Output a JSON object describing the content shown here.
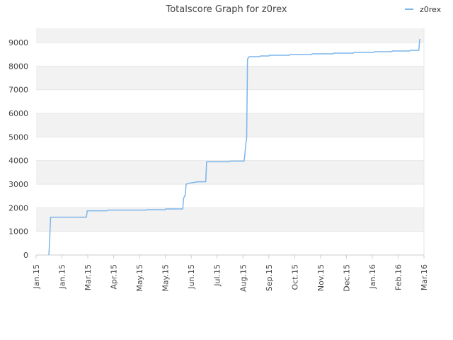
{
  "chart_data": {
    "type": "line",
    "title": "Totalscore Graph for z0rex",
    "xlabel": "",
    "ylabel": "",
    "ylim": [
      0,
      9600
    ],
    "y_ticks": [
      0,
      1000,
      2000,
      3000,
      4000,
      5000,
      6000,
      7000,
      8000,
      9000
    ],
    "x_ticks": [
      "Jan.15",
      "Jan.15",
      "Mar.15",
      "Apr.15",
      "May.15",
      "May.15",
      "Jun.15",
      "Jul.15",
      "Aug.15",
      "Sep.15",
      "Oct.15",
      "Nov.15",
      "Dec.15",
      "Jan.16",
      "Feb.16",
      "Mar.16"
    ],
    "legend_position": "top-right",
    "grid": true,
    "series": [
      {
        "name": "z0rex",
        "color": "#7cb5ec",
        "points": [
          [
            "2015-01-16",
            0
          ],
          [
            "2015-01-17",
            700
          ],
          [
            "2015-01-18",
            1600
          ],
          [
            "2015-03-01",
            1600
          ],
          [
            "2015-03-02",
            1870
          ],
          [
            "2015-03-25",
            1870
          ],
          [
            "2015-03-26",
            1900
          ],
          [
            "2015-05-10",
            1900
          ],
          [
            "2015-05-11",
            1920
          ],
          [
            "2015-06-01",
            1920
          ],
          [
            "2015-06-02",
            1950
          ],
          [
            "2015-06-22",
            1950
          ],
          [
            "2015-06-23",
            2400
          ],
          [
            "2015-06-25",
            2550
          ],
          [
            "2015-06-26",
            3000
          ],
          [
            "2015-07-01",
            3050
          ],
          [
            "2015-07-10",
            3100
          ],
          [
            "2015-07-19",
            3100
          ],
          [
            "2015-07-20",
            3950
          ],
          [
            "2015-08-16",
            3950
          ],
          [
            "2015-08-17",
            3980
          ],
          [
            "2015-09-02",
            3980
          ],
          [
            "2015-09-03",
            4300
          ],
          [
            "2015-09-04",
            4700
          ],
          [
            "2015-09-05",
            4950
          ],
          [
            "2015-09-06",
            8300
          ],
          [
            "2015-09-08",
            8400
          ],
          [
            "2015-09-20",
            8400
          ],
          [
            "2015-09-21",
            8430
          ],
          [
            "2015-10-01",
            8430
          ],
          [
            "2015-10-02",
            8460
          ],
          [
            "2015-10-25",
            8460
          ],
          [
            "2015-10-26",
            8490
          ],
          [
            "2015-11-20",
            8490
          ],
          [
            "2015-11-21",
            8520
          ],
          [
            "2015-12-15",
            8520
          ],
          [
            "2015-12-16",
            8550
          ],
          [
            "2016-01-08",
            8550
          ],
          [
            "2016-01-09",
            8580
          ],
          [
            "2016-02-01",
            8580
          ],
          [
            "2016-02-02",
            8610
          ],
          [
            "2016-02-22",
            8610
          ],
          [
            "2016-02-23",
            8640
          ],
          [
            "2016-03-14",
            8640
          ],
          [
            "2016-03-15",
            8670
          ],
          [
            "2016-03-25",
            8670
          ],
          [
            "2016-03-26",
            9150
          ]
        ]
      }
    ]
  }
}
